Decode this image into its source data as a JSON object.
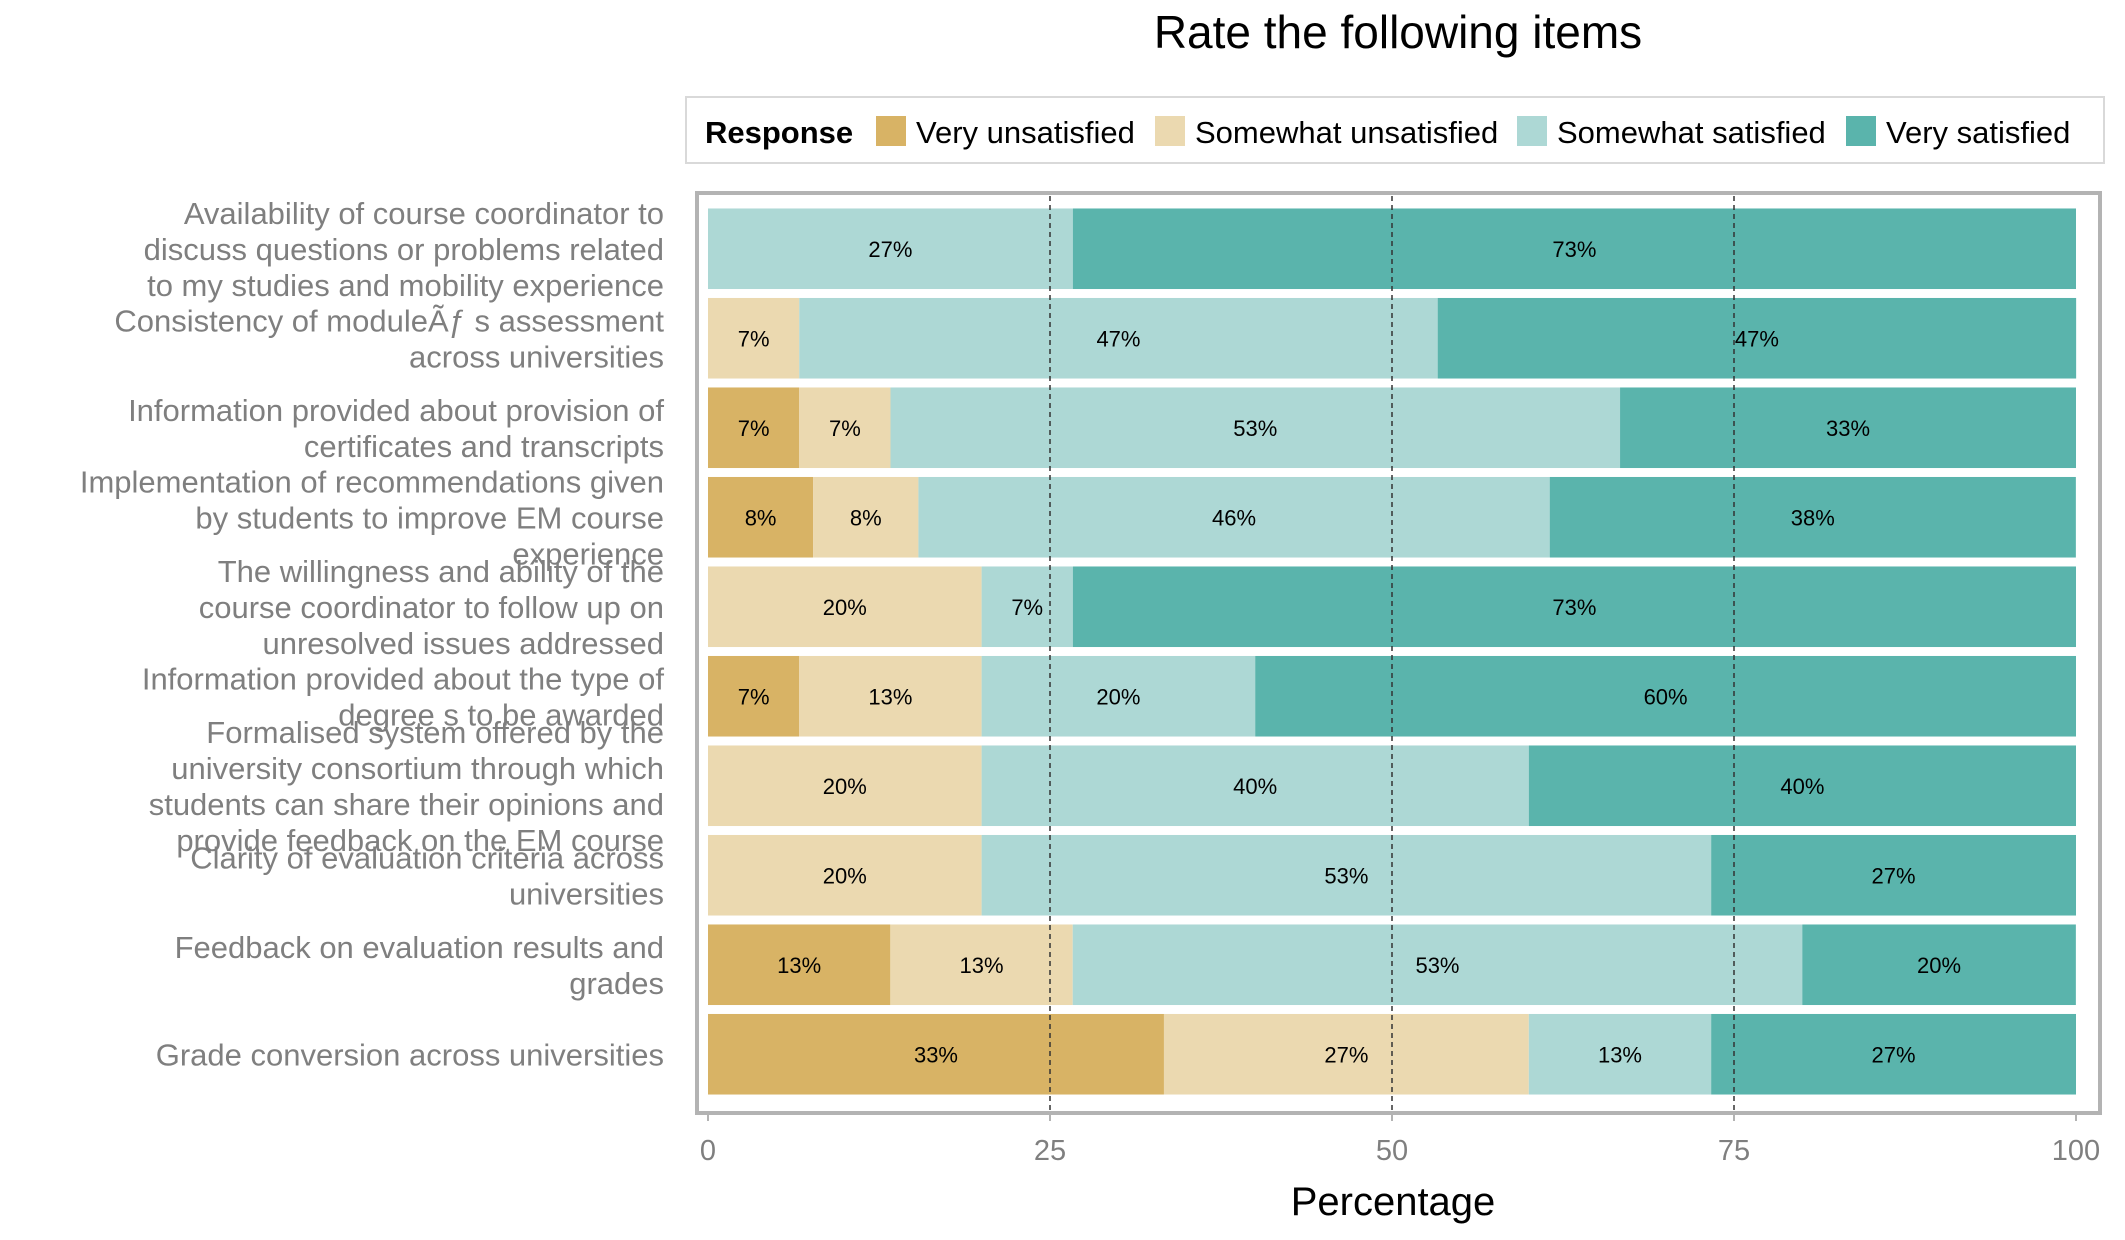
{
  "chart_data": {
    "type": "bar",
    "orientation": "horizontal",
    "stacked": true,
    "title": "Rate the following items",
    "xlabel": "Percentage",
    "xlim": [
      0,
      100
    ],
    "xticks": [
      0,
      25,
      50,
      75,
      100
    ],
    "legend": {
      "title": "Response",
      "placement": "top",
      "entries": [
        "Very unsatisfied",
        "Somewhat unsatisfied",
        "Somewhat satisfied",
        "Very satisfied"
      ]
    },
    "colors": [
      "#d8b365",
      "#ebd9b0",
      "#add8d5",
      "#5ab4ac"
    ],
    "categories": [
      "Availability of course coordinator to discuss questions or problems related to my studies and mobility experience",
      "Consistency of moduleÃƒ s assessment across universities",
      "Information provided about provision of certificates and transcripts",
      "Implementation of recommendations given by students to improve EM course experience",
      "The willingness and ability of the course coordinator to follow up on unresolved issues addressed",
      "Information provided about the type of degree s to be awarded",
      "Formalised system offered by the university consortium through which students can share their opinions and provide feedback on the EM course",
      "Clarity of evaluation criteria across universities",
      "Feedback on evaluation results and grades",
      "Grade conversion across universities"
    ],
    "category_lines": [
      [
        "Availability of course coordinator to",
        "discuss questions or problems related",
        "to my studies and mobility experience"
      ],
      [
        "Consistency of moduleÃƒ s assessment",
        "across universities"
      ],
      [
        "Information provided about provision of",
        "certificates and transcripts"
      ],
      [
        "Implementation of recommendations given",
        "by students to improve EM course",
        "experience"
      ],
      [
        "The willingness and ability of the",
        "course coordinator to follow up on",
        "unresolved issues addressed"
      ],
      [
        "Information provided about the type of",
        "degree s to be awarded"
      ],
      [
        "Formalised system offered by the",
        "university consortium through which",
        "students can share their opinions and",
        "provide feedback on the EM course"
      ],
      [
        "Clarity of evaluation criteria across",
        "universities"
      ],
      [
        "Feedback on evaluation results and",
        "grades"
      ],
      [
        "Grade conversion across universities"
      ]
    ],
    "series": [
      {
        "name": "Very unsatisfied",
        "values": [
          0,
          0,
          6.67,
          7.69,
          0,
          6.67,
          0,
          0,
          13.33,
          33.33
        ]
      },
      {
        "name": "Somewhat unsatisfied",
        "values": [
          0,
          6.67,
          6.67,
          7.69,
          20,
          13.33,
          20,
          20,
          13.33,
          26.67
        ]
      },
      {
        "name": "Somewhat satisfied",
        "values": [
          26.67,
          46.67,
          53.33,
          46.15,
          6.67,
          20,
          40,
          53.33,
          53.33,
          13.33
        ]
      },
      {
        "name": "Very satisfied",
        "values": [
          73.33,
          46.67,
          33.33,
          38.46,
          73.33,
          60,
          40,
          26.67,
          20,
          26.67
        ]
      }
    ],
    "data_labels": [
      [
        "",
        "",
        "27%",
        "73%"
      ],
      [
        "",
        "7%",
        "47%",
        "47%"
      ],
      [
        "7%",
        "7%",
        "53%",
        "33%"
      ],
      [
        "8%",
        "8%",
        "46%",
        "38%"
      ],
      [
        "",
        "20%",
        "7%",
        "73%"
      ],
      [
        "7%",
        "13%",
        "20%",
        "60%"
      ],
      [
        "",
        "20%",
        "40%",
        "40%"
      ],
      [
        "",
        "20%",
        "53%",
        "27%"
      ],
      [
        "13%",
        "13%",
        "53%",
        "20%"
      ],
      [
        "33%",
        "27%",
        "13%",
        "27%"
      ]
    ],
    "reference_lines": [
      25,
      50,
      75
    ],
    "grid": false
  }
}
